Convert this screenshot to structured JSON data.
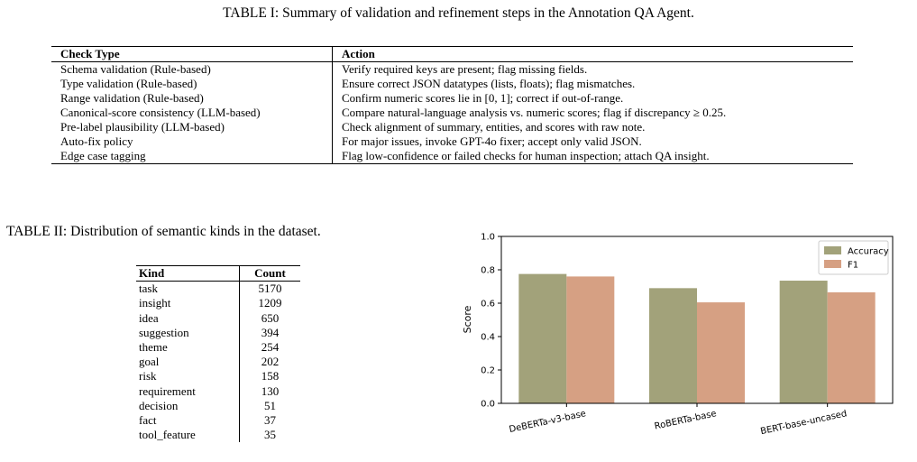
{
  "table1": {
    "caption": "TABLE I: Summary of validation and refinement steps in the Annotation QA Agent.",
    "headers": [
      "Check Type",
      "Action"
    ],
    "rows": [
      {
        "check": "Schema validation (Rule-based)",
        "action": "Verify required keys are present; flag missing fields."
      },
      {
        "check": "Type validation (Rule-based)",
        "action": "Ensure correct JSON datatypes (lists, floats); flag mismatches."
      },
      {
        "check": "Range validation (Rule-based)",
        "action": "Confirm numeric scores lie in [0, 1]; correct if out-of-range."
      },
      {
        "check": "Canonical-score consistency (LLM-based)",
        "action": "Compare natural-language analysis vs. numeric scores; flag if discrepancy ≥ 0.25."
      },
      {
        "check": "Pre-label plausibility (LLM-based)",
        "action": "Check alignment of summary, entities, and scores with raw note."
      },
      {
        "check": "Auto-fix policy",
        "action": "For major issues, invoke GPT-4o fixer; accept only valid JSON."
      },
      {
        "check": "Edge case tagging",
        "action": "Flag low-confidence or failed checks for human inspection; attach QA insight."
      }
    ]
  },
  "table2": {
    "caption": "TABLE II: Distribution of semantic kinds in the dataset.",
    "headers": [
      "Kind",
      "Count"
    ],
    "rows": [
      {
        "kind": "task",
        "count": "5170"
      },
      {
        "kind": "insight",
        "count": "1209"
      },
      {
        "kind": "idea",
        "count": "650"
      },
      {
        "kind": "suggestion",
        "count": "394"
      },
      {
        "kind": "theme",
        "count": "254"
      },
      {
        "kind": "goal",
        "count": "202"
      },
      {
        "kind": "risk",
        "count": "158"
      },
      {
        "kind": "requirement",
        "count": "130"
      },
      {
        "kind": "decision",
        "count": "51"
      },
      {
        "kind": "fact",
        "count": "37"
      },
      {
        "kind": "tool_feature",
        "count": "35"
      }
    ]
  },
  "chart_data": {
    "type": "bar",
    "title": "",
    "xlabel": "",
    "ylabel": "Score",
    "ylim": [
      0,
      1.0
    ],
    "yticks": [
      "0.0",
      "0.2",
      "0.4",
      "0.6",
      "0.8",
      "1.0"
    ],
    "categories": [
      "DeBERTa-v3-base",
      "RoBERTa-base",
      "BERT-base-uncased"
    ],
    "series": [
      {
        "name": "Accuracy",
        "color": "#a2a27a",
        "values": [
          0.775,
          0.69,
          0.735
        ]
      },
      {
        "name": "F1",
        "color": "#d6a083",
        "values": [
          0.76,
          0.605,
          0.665
        ]
      }
    ],
    "legend": "top-right",
    "grid": false
  }
}
